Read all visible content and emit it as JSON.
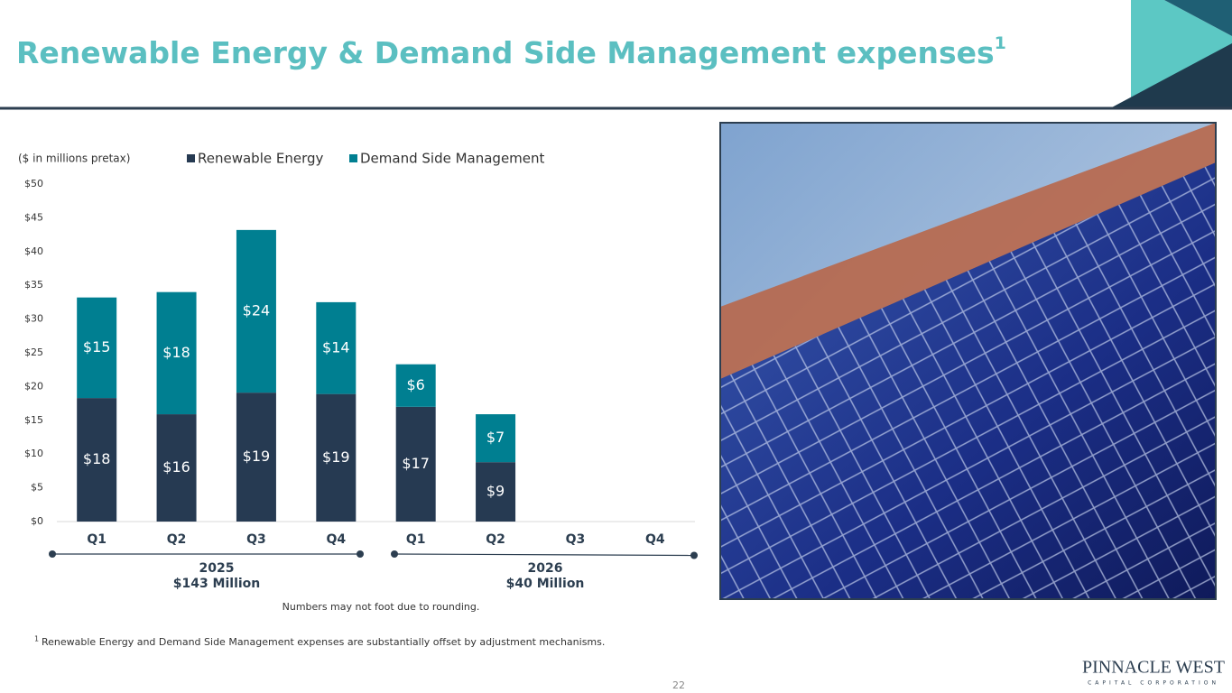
{
  "title": "Renewable Energy & Demand Side Management expenses",
  "title_superscript": "1",
  "footnote_marker": "1",
  "footnote": "Renewable Energy and Demand Side Management expenses are substantially offset by adjustment mechanisms.",
  "page_number": "22",
  "logo": {
    "name": "PINNACLE WEST",
    "tagline": "CAPITAL CORPORATION"
  },
  "chart_data": {
    "type": "stacked-bar",
    "subtitle": "($ in millions pretax)",
    "categories": [
      "Q1",
      "Q2",
      "Q3",
      "Q4",
      "Q1",
      "Q2",
      "Q3",
      "Q4"
    ],
    "series": [
      {
        "name": "Renewable Energy",
        "color": "#263a52",
        "values": [
          18.3,
          15.9,
          19.1,
          18.9,
          17.0,
          8.8,
          null,
          null
        ],
        "value_labels": [
          "$18",
          "$16",
          "$19",
          "$19",
          "$17",
          "$9",
          null,
          null
        ]
      },
      {
        "name": "Demand Side Management",
        "color": "#007f91",
        "values": [
          14.9,
          18.1,
          24.1,
          13.6,
          6.3,
          7.1,
          null,
          null
        ],
        "value_labels": [
          "$15",
          "$18",
          "$24",
          "$14",
          "$6",
          "$7",
          null,
          null
        ]
      }
    ],
    "ylim": [
      0,
      50
    ],
    "yticks": [
      {
        "value": 0,
        "label": "$0"
      },
      {
        "value": 5,
        "label": "$5"
      },
      {
        "value": 10,
        "label": "$10"
      },
      {
        "value": 15,
        "label": "$15"
      },
      {
        "value": 20,
        "label": "$20"
      },
      {
        "value": 25,
        "label": "$25"
      },
      {
        "value": 30,
        "label": "$30"
      },
      {
        "value": 35,
        "label": "$35"
      },
      {
        "value": 40,
        "label": "$40"
      },
      {
        "value": 45,
        "label": "$45"
      },
      {
        "value": 50,
        "label": "$50"
      }
    ],
    "grid": false,
    "legend": "top",
    "groups": [
      {
        "year": "2025",
        "total": "$143 Million"
      },
      {
        "year": "2026",
        "total": "$40 Million"
      }
    ],
    "note": "Numbers may not foot due to rounding."
  }
}
